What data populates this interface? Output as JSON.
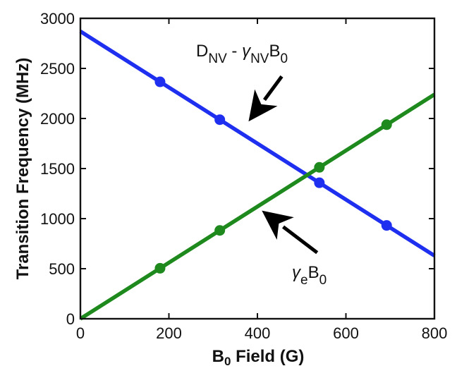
{
  "chart_data": {
    "type": "line",
    "xlabel": {
      "main": "B",
      "sub": "0",
      "rest": " Field (G)"
    },
    "ylabel": "Transition Frequency (MHz)",
    "xlim": [
      0,
      800
    ],
    "ylim": [
      0,
      3000
    ],
    "xticks": [
      0,
      200,
      400,
      600,
      800
    ],
    "yticks": [
      0,
      500,
      1000,
      1500,
      2000,
      2500,
      3000
    ],
    "grid": false,
    "series": [
      {
        "key": "nv",
        "color": "#1f2ff0",
        "line": {
          "x": [
            0,
            800
          ],
          "y": [
            2870,
            630
          ]
        },
        "points": {
          "x": [
            180,
            315,
            540,
            692
          ],
          "y": [
            2366,
            1988,
            1358,
            932
          ]
        }
      },
      {
        "key": "electron",
        "color": "#1e8a1e",
        "line": {
          "x": [
            0,
            800
          ],
          "y": [
            0,
            2240
          ]
        },
        "points": {
          "x": [
            180,
            315,
            540,
            692
          ],
          "y": [
            504,
            882,
            1512,
            1938
          ]
        }
      }
    ],
    "annotations": [
      {
        "key": "nv",
        "parts": [
          {
            "t": "D"
          },
          {
            "t": "NV",
            "sub": true
          },
          {
            "t": " - "
          },
          {
            "t": "γ",
            "italic": true
          },
          {
            "t": "NV",
            "sub": true
          },
          {
            "t": "B"
          },
          {
            "t": "0",
            "sub": true
          }
        ],
        "arrow_tip": {
          "x": 380,
          "y": 1970
        },
        "arrow_tail": {
          "x": 455,
          "y": 2420
        }
      },
      {
        "key": "electron",
        "parts": [
          {
            "t": "γ",
            "italic": true
          },
          {
            "t": "e",
            "sub": true
          },
          {
            "t": "B"
          },
          {
            "t": "0",
            "sub": true
          }
        ],
        "arrow_tip": {
          "x": 410,
          "y": 1080
        },
        "arrow_tail": {
          "x": 535,
          "y": 660
        }
      }
    ]
  }
}
